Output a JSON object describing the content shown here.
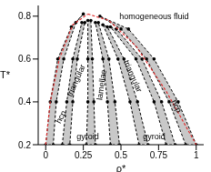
{
  "chart_data": {
    "type": "scatter",
    "xlabel": "ρ*",
    "ylabel": "T*",
    "xlim": [
      -0.05,
      1.05
    ],
    "ylim": [
      0.2,
      0.85
    ],
    "xticks": [
      0,
      0.25,
      0.5,
      0.75,
      1
    ],
    "yticks": [
      0.2,
      0.4,
      0.6,
      0.8
    ],
    "regions": [
      {
        "color": "#c8c8c8",
        "line_style": "dashed",
        "marker": "circle",
        "x": [
          0.0,
          0.03,
          0.08,
          0.17,
          0.25,
          0.2,
          0.12,
          0.07,
          0.05
        ],
        "y": [
          0.2,
          0.4,
          0.6,
          0.75,
          0.81,
          0.77,
          0.6,
          0.4,
          0.2
        ]
      },
      {
        "color": "#c8c8c8",
        "line_style": "dashed",
        "marker": "circle",
        "x": [
          0.11,
          0.14,
          0.18,
          0.24,
          0.26,
          0.21,
          0.18,
          0.16
        ],
        "y": [
          0.2,
          0.4,
          0.6,
          0.77,
          0.77,
          0.6,
          0.4,
          0.2
        ]
      },
      {
        "color": "#c8c8c8",
        "line_style": "dashed",
        "marker": "circle",
        "x": [
          0.27,
          0.28,
          0.28,
          0.28,
          0.3,
          0.31,
          0.32,
          0.33
        ],
        "y": [
          0.2,
          0.4,
          0.6,
          0.78,
          0.78,
          0.6,
          0.4,
          0.2
        ]
      },
      {
        "color": "#c8c8c8",
        "line_style": "dashed",
        "marker": "circle",
        "x": [
          0.43,
          0.41,
          0.38,
          0.33,
          0.35,
          0.42,
          0.46,
          0.49
        ],
        "y": [
          0.2,
          0.4,
          0.6,
          0.77,
          0.77,
          0.6,
          0.4,
          0.2
        ]
      },
      {
        "color": "#c8c8c8",
        "line_style": "dashed",
        "marker": "circle",
        "x": [
          0.62,
          0.56,
          0.48,
          0.38,
          0.41,
          0.52,
          0.61,
          0.68
        ],
        "y": [
          0.2,
          0.4,
          0.6,
          0.76,
          0.75,
          0.6,
          0.4,
          0.2
        ]
      },
      {
        "color": "#c8c8c8",
        "line_style": "dashed",
        "marker": "circle",
        "x": [
          0.8,
          0.72,
          0.6,
          0.43,
          0.47,
          0.64,
          0.77,
          0.86
        ],
        "y": [
          0.2,
          0.4,
          0.6,
          0.75,
          0.74,
          0.6,
          0.4,
          0.2
        ]
      },
      {
        "color": "#c8c8c8",
        "line_style": "dashed",
        "marker": "circle",
        "x": [
          0.93,
          0.82,
          0.67,
          0.5,
          0.36,
          0.55,
          0.72,
          0.88,
          1.0
        ],
        "y": [
          0.2,
          0.4,
          0.6,
          0.74,
          0.8,
          0.74,
          0.6,
          0.4,
          0.2
        ]
      }
    ],
    "series": [
      {
        "color": "#e03030",
        "line_style": "dashed",
        "x": [
          0.0,
          0.03,
          0.09,
          0.18,
          0.28
        ],
        "y": [
          0.2,
          0.4,
          0.6,
          0.76,
          0.81
        ]
      },
      {
        "color": "#e03030",
        "line_style": "dashed",
        "x": [
          0.28,
          0.42,
          0.6,
          0.8,
          1.0
        ],
        "y": [
          0.81,
          0.78,
          0.66,
          0.45,
          0.2
        ]
      }
    ],
    "annotations": [
      {
        "text": "homogeneous fluid",
        "x": 0.72,
        "y": 0.8
      },
      {
        "text": "hcp",
        "x": 0.1,
        "y": 0.33
      },
      {
        "text": "triangular",
        "x": 0.2,
        "y": 0.5
      },
      {
        "text": "lamellae",
        "x": 0.37,
        "y": 0.48
      },
      {
        "text": "triangular",
        "x": 0.58,
        "y": 0.52
      },
      {
        "text": "hcp",
        "x": 0.87,
        "y": 0.38
      },
      {
        "text": "gyroid",
        "x": 0.28,
        "y": 0.24
      },
      {
        "text": "gyroid",
        "x": 0.72,
        "y": 0.24
      }
    ]
  }
}
